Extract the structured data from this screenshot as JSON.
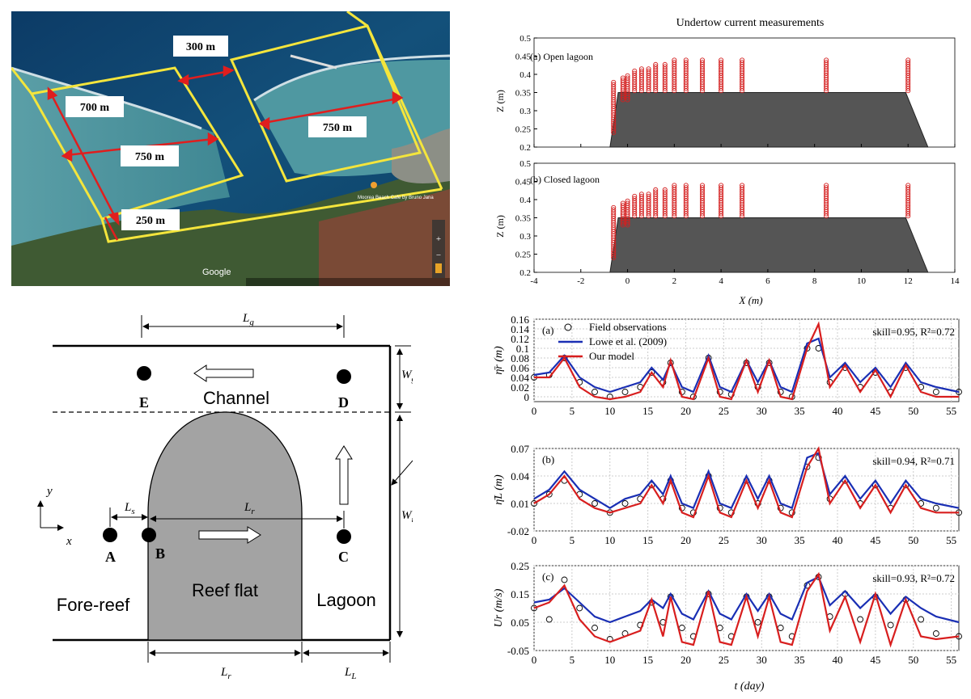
{
  "satellite": {
    "labels": [
      "300 m",
      "700 m",
      "750 m",
      "750 m",
      "250 m"
    ],
    "map_brand": "Google",
    "poi": "Moorea Beach Cafe\nby Bruno Jana"
  },
  "undertow": {
    "title": "Undertow current measurements",
    "panel_a": "(a) Open lagoon",
    "panel_b": "(b) Closed lagoon",
    "ylabel": "Z (m)",
    "xlabel": "X (m)",
    "yticks": [
      "0.2",
      "0.25",
      "0.3",
      "0.35",
      "0.4",
      "0.45",
      "0.5"
    ],
    "xticks": [
      "-4",
      "-2",
      "0",
      "2",
      "4",
      "6",
      "8",
      "10",
      "12",
      "14"
    ],
    "profile_x": [
      -0.6,
      -0.2,
      0,
      0.3,
      0.6,
      0.9,
      1.2,
      1.6,
      2.0,
      2.5,
      3.2,
      4.0,
      4.9,
      8.5,
      12.0
    ],
    "profile_top": [
      0.38,
      0.39,
      0.4,
      0.41,
      0.42,
      0.42,
      0.43,
      0.43,
      0.44,
      0.44,
      0.44,
      0.44,
      0.44,
      0.44,
      0.44
    ],
    "reef_shape": {
      "x": [
        -0.75,
        -0.4,
        11.9,
        12.85
      ],
      "z": [
        0.2,
        0.35,
        0.35,
        0.2
      ]
    }
  },
  "schematic": {
    "Lg": "L",
    "Lg_sub": "g",
    "Wg": "W",
    "Wg_sub": "g",
    "Wr": "W",
    "Wr_sub": "r",
    "Ls": "L",
    "Ls_sub": "s",
    "Lr": "L",
    "Lr_sub": "r",
    "LL": "L",
    "LL_sub": "L",
    "y_axis": "y",
    "x_axis": "x",
    "points": [
      "A",
      "B",
      "C",
      "D",
      "E"
    ],
    "channel": "Channel",
    "reef_flat": "Reef flat",
    "fore_reef": "Fore-reef",
    "lagoon": "Lagoon"
  },
  "chart_data": [
    {
      "type": "line",
      "panel": "(a)",
      "ylabel": "η̄r (m)",
      "xlabel": "t (day)",
      "ylim": [
        -0.01,
        0.16
      ],
      "xlim": [
        0,
        56
      ],
      "yticks": [
        "0",
        "0.02",
        "0.04",
        "0.06",
        "0.08",
        "0.1",
        "0.12",
        "0.14",
        "0.16"
      ],
      "xticks": [
        "0",
        "5",
        "10",
        "15",
        "20",
        "25",
        "30",
        "35",
        "40",
        "45",
        "50",
        "55"
      ],
      "stat": "skill=0.95, R²=0.72",
      "legend": [
        "Field observations",
        "Lowe et al. (2009)",
        "Our model"
      ],
      "x": [
        0,
        2,
        4,
        6,
        8,
        10,
        12,
        14,
        15.5,
        17,
        18,
        19.5,
        21,
        23,
        24.5,
        26,
        28,
        29.5,
        31,
        32.5,
        34,
        36,
        37.5,
        39,
        41,
        43,
        45,
        47,
        49,
        51,
        53,
        56
      ],
      "series": [
        {
          "name": "Field observations",
          "values": [
            0.04,
            0.045,
            0.08,
            0.03,
            0.01,
            0.0,
            0.01,
            0.02,
            0.05,
            0.03,
            0.07,
            0.01,
            0.0,
            0.08,
            0.01,
            0.005,
            0.07,
            0.02,
            0.07,
            0.01,
            0.0,
            0.1,
            0.1,
            0.03,
            0.06,
            0.02,
            0.05,
            0.01,
            0.06,
            0.02,
            0.01,
            0.01
          ]
        },
        {
          "name": "Lowe et al. (2009)",
          "values": [
            0.045,
            0.05,
            0.085,
            0.04,
            0.02,
            0.01,
            0.02,
            0.03,
            0.06,
            0.035,
            0.07,
            0.02,
            0.01,
            0.085,
            0.02,
            0.01,
            0.075,
            0.03,
            0.075,
            0.02,
            0.01,
            0.11,
            0.12,
            0.04,
            0.07,
            0.03,
            0.06,
            0.02,
            0.07,
            0.03,
            0.02,
            0.01
          ]
        },
        {
          "name": "Our model",
          "values": [
            0.04,
            0.04,
            0.08,
            0.02,
            0.0,
            -0.005,
            0.0,
            0.01,
            0.05,
            0.02,
            0.075,
            0.0,
            -0.005,
            0.08,
            0.0,
            -0.005,
            0.075,
            0.01,
            0.075,
            0.0,
            -0.005,
            0.1,
            0.15,
            0.02,
            0.065,
            0.01,
            0.055,
            0.0,
            0.065,
            0.01,
            0.0,
            0.0
          ]
        }
      ]
    },
    {
      "type": "line",
      "panel": "(b)",
      "ylabel": "η̄L (m)",
      "xlabel": "t (day)",
      "ylim": [
        -0.02,
        0.07
      ],
      "xlim": [
        0,
        56
      ],
      "yticks": [
        "-0.02",
        "0.01",
        "0.04",
        "0.07"
      ],
      "xticks": [
        "0",
        "5",
        "10",
        "15",
        "20",
        "25",
        "30",
        "35",
        "40",
        "45",
        "50",
        "55"
      ],
      "stat": "skill=0.94, R²=0.71",
      "x": [
        0,
        2,
        4,
        6,
        8,
        10,
        12,
        14,
        15.5,
        17,
        18,
        19.5,
        21,
        23,
        24.5,
        26,
        28,
        29.5,
        31,
        32.5,
        34,
        36,
        37.5,
        39,
        41,
        43,
        45,
        47,
        49,
        51,
        53,
        56
      ],
      "series": [
        {
          "name": "Field observations",
          "values": [
            0.01,
            0.02,
            0.035,
            0.02,
            0.01,
            0.0,
            0.01,
            0.015,
            0.03,
            0.015,
            0.035,
            0.005,
            0.0,
            0.04,
            0.005,
            0.0,
            0.035,
            0.01,
            0.035,
            0.005,
            0.0,
            0.05,
            0.06,
            0.015,
            0.035,
            0.01,
            0.03,
            0.005,
            0.03,
            0.01,
            0.005,
            0.0
          ]
        },
        {
          "name": "Lowe et al. (2009)",
          "values": [
            0.015,
            0.025,
            0.045,
            0.025,
            0.015,
            0.005,
            0.015,
            0.02,
            0.035,
            0.02,
            0.04,
            0.01,
            0.005,
            0.045,
            0.01,
            0.005,
            0.04,
            0.015,
            0.04,
            0.01,
            0.005,
            0.06,
            0.065,
            0.02,
            0.04,
            0.015,
            0.035,
            0.01,
            0.035,
            0.015,
            0.01,
            0.005
          ]
        },
        {
          "name": "Our model",
          "values": [
            0.01,
            0.02,
            0.04,
            0.015,
            0.005,
            0.0,
            0.005,
            0.01,
            0.03,
            0.01,
            0.035,
            0.0,
            -0.005,
            0.04,
            0.0,
            -0.005,
            0.035,
            0.005,
            0.035,
            0.0,
            -0.005,
            0.05,
            0.07,
            0.01,
            0.035,
            0.005,
            0.03,
            0.0,
            0.03,
            0.005,
            0.0,
            0.0
          ]
        }
      ]
    },
    {
      "type": "line",
      "panel": "(c)",
      "ylabel": "Ur (m/s)",
      "xlabel": "t (day)",
      "ylim": [
        -0.05,
        0.25
      ],
      "xlim": [
        0,
        56
      ],
      "yticks": [
        "-0.05",
        "0.05",
        "0.15",
        "0.25"
      ],
      "xticks": [
        "0",
        "5",
        "10",
        "15",
        "20",
        "25",
        "30",
        "35",
        "40",
        "45",
        "50",
        "55"
      ],
      "stat": "skill=0.93, R²=0.72",
      "x": [
        0,
        2,
        4,
        6,
        8,
        10,
        12,
        14,
        15.5,
        17,
        18,
        19.5,
        21,
        23,
        24.5,
        26,
        28,
        29.5,
        31,
        32.5,
        34,
        36,
        37.5,
        39,
        41,
        43,
        45,
        47,
        49,
        51,
        53,
        56
      ],
      "series": [
        {
          "name": "Field observations",
          "values": [
            0.1,
            0.06,
            0.2,
            0.1,
            0.03,
            -0.01,
            0.01,
            0.04,
            0.12,
            0.05,
            0.14,
            0.03,
            0.0,
            0.15,
            0.03,
            0.0,
            0.14,
            0.05,
            0.14,
            0.03,
            0.0,
            0.18,
            0.21,
            0.07,
            0.15,
            0.06,
            0.14,
            0.04,
            0.13,
            0.06,
            0.01,
            0.0
          ]
        },
        {
          "name": "Lowe et al. (2009)",
          "values": [
            0.12,
            0.13,
            0.17,
            0.12,
            0.07,
            0.05,
            0.07,
            0.09,
            0.13,
            0.1,
            0.15,
            0.08,
            0.06,
            0.16,
            0.08,
            0.06,
            0.15,
            0.09,
            0.15,
            0.08,
            0.06,
            0.19,
            0.21,
            0.11,
            0.16,
            0.1,
            0.15,
            0.08,
            0.14,
            0.1,
            0.07,
            0.05
          ]
        },
        {
          "name": "Our model",
          "values": [
            0.1,
            0.12,
            0.18,
            0.06,
            0.0,
            -0.02,
            0.0,
            0.02,
            0.13,
            0.0,
            0.14,
            -0.02,
            -0.03,
            0.16,
            -0.02,
            -0.03,
            0.14,
            0.0,
            0.14,
            -0.02,
            -0.03,
            0.16,
            0.22,
            0.02,
            0.14,
            -0.02,
            0.15,
            -0.03,
            0.13,
            0.0,
            -0.01,
            0.0
          ]
        }
      ]
    }
  ]
}
